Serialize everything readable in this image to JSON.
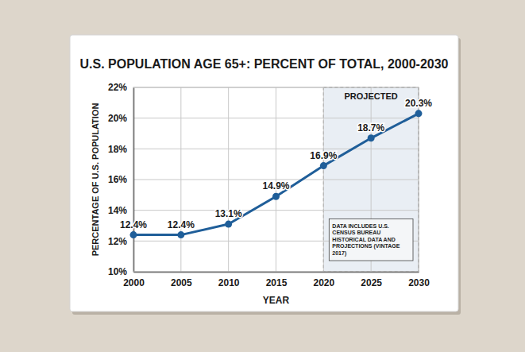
{
  "chart_data": {
    "type": "line",
    "title": "U.S. POPULATION AGE 65+: PERCENT OF TOTAL, 2000-2030",
    "x_label": "YEAR",
    "y_label": "PERCENTAGE OF U.S. POPULATION",
    "x": [
      2000,
      2005,
      2010,
      2015,
      2020,
      2025,
      2030
    ],
    "values": [
      12.4,
      12.4,
      13.1,
      14.9,
      16.9,
      18.7,
      20.3
    ],
    "value_labels": [
      "12.4%",
      "12.4%",
      "13.1%",
      "14.9%",
      "16.9%",
      "18.7%",
      "20.3%"
    ],
    "data_labels": true,
    "color": "#1f5e99",
    "marker": "circle",
    "xlim": [
      2000,
      2030
    ],
    "xticks": [
      2000,
      2005,
      2010,
      2015,
      2020,
      2025,
      2030
    ],
    "ylim": [
      10,
      22
    ],
    "yticks": [
      {
        "value": 10,
        "label": "10%"
      },
      {
        "value": 12,
        "label": "12%"
      },
      {
        "value": 14,
        "label": "14%"
      },
      {
        "value": 16,
        "label": "16%"
      },
      {
        "value": 18,
        "label": "18%"
      },
      {
        "value": 20,
        "label": "20%"
      },
      {
        "value": 22,
        "label": "22%"
      }
    ],
    "grid": true,
    "annotations": [
      {
        "text": "PROJECTED",
        "x": [
          2020,
          2030
        ]
      },
      {
        "text": "DATA INCLUDES U.S. CENSUS BUREAU HISTORICAL DATA AND PROJECTIONS (VINTAGE 2017)"
      }
    ]
  }
}
